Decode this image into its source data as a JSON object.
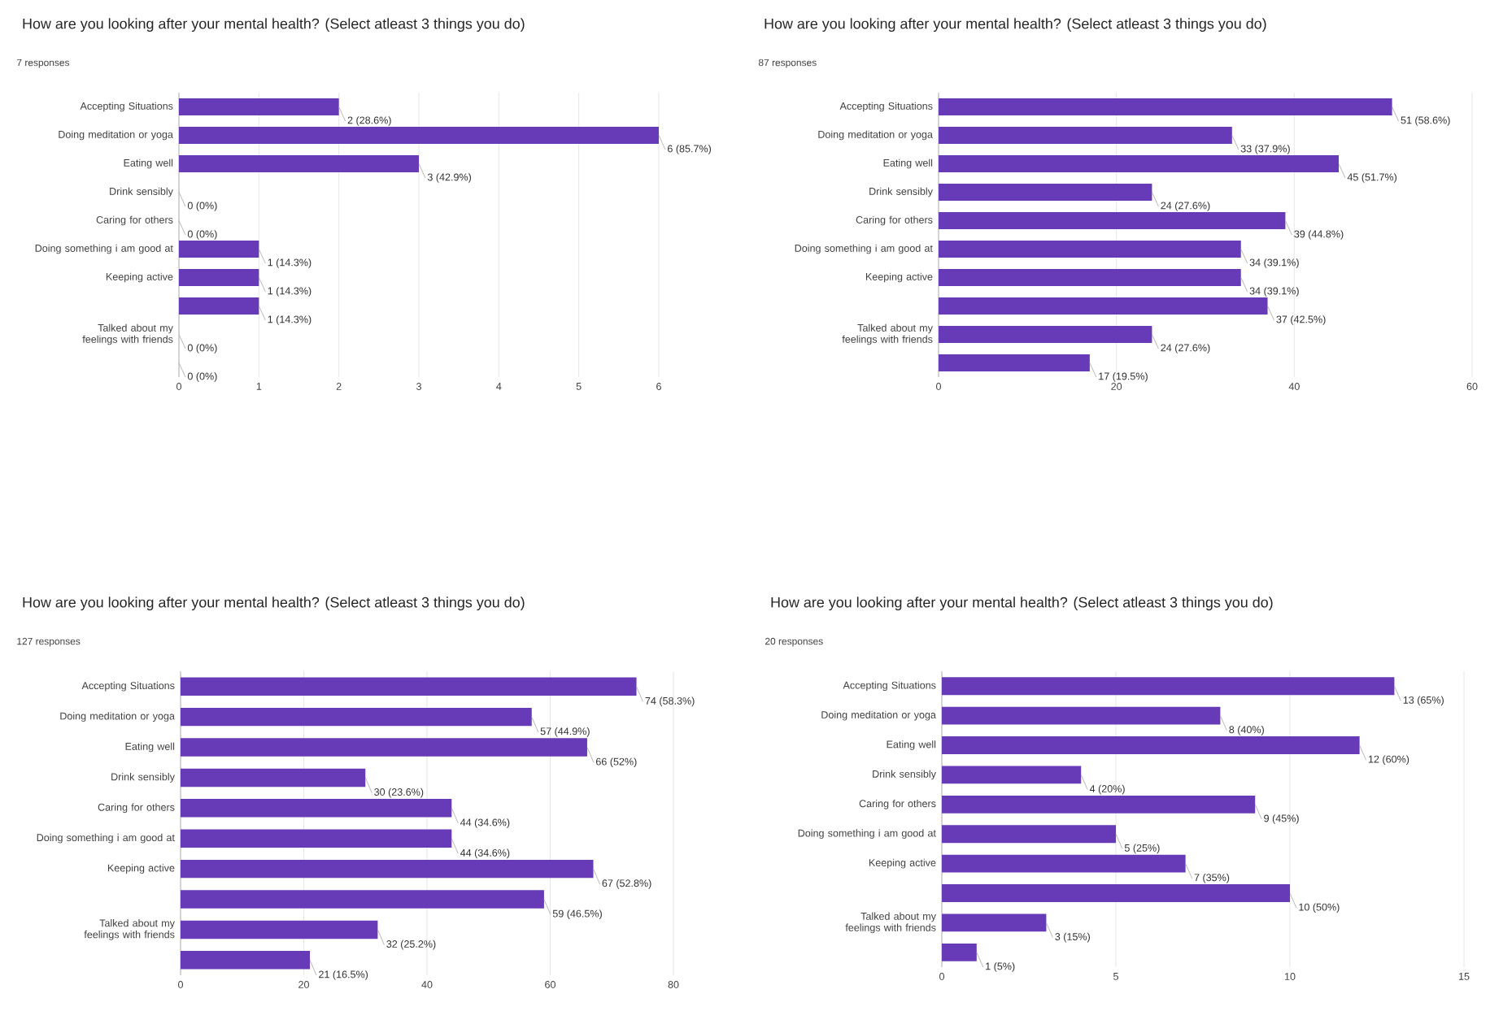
{
  "chart_data": [
    {
      "type": "bar",
      "orientation": "horizontal",
      "title": "How are you looking after your mental health? (Select atleast 3 things you do)",
      "subtitle": "7 responses",
      "categories": [
        "Accepting Situations",
        "Doing meditation or yoga",
        "Eating well",
        "Drink sensibly",
        "Caring for others",
        "Doing something i am good at",
        "Keeping active",
        null,
        "Talked about my feelings with friends",
        null
      ],
      "values": [
        2,
        6,
        3,
        0,
        0,
        1,
        1,
        1,
        0,
        0
      ],
      "value_labels": [
        "2 (28.6%)",
        "6 (85.7%)",
        "3 (42.9%)",
        "0 (0%)",
        "0 (0%)",
        "1 (14.3%)",
        "1 (14.3%)",
        "1 (14.3%)",
        "0 (0%)",
        "0 (0%)"
      ],
      "color": "#673ab7",
      "xlim": [
        0,
        6
      ],
      "xticks": [
        0,
        1,
        2,
        3,
        4,
        5,
        6
      ],
      "grid": "x"
    },
    {
      "type": "bar",
      "orientation": "horizontal",
      "title": "How are you looking after your mental health? (Select atleast 3 things you do)",
      "subtitle": "87 responses",
      "categories": [
        "Accepting Situations",
        "Doing meditation or yoga",
        "Eating well",
        "Drink sensibly",
        "Caring for others",
        "Doing something i am good at",
        "Keeping active",
        null,
        "Talked about my feelings with friends",
        null
      ],
      "values": [
        51,
        33,
        45,
        24,
        39,
        34,
        34,
        37,
        24,
        17
      ],
      "value_labels": [
        "51 (58.6%)",
        "33 (37.9%)",
        "45 (51.7%)",
        "24 (27.6%)",
        "39 (44.8%)",
        "34 (39.1%)",
        "34 (39.1%)",
        "37 (42.5%)",
        "24 (27.6%)",
        "17 (19.5%)"
      ],
      "color": "#673ab7",
      "xlim": [
        0,
        60
      ],
      "xticks": [
        0,
        20,
        40,
        60
      ],
      "grid": "x"
    },
    {
      "type": "bar",
      "orientation": "horizontal",
      "title": "How are you looking after your mental health? (Select atleast 3 things you do)",
      "subtitle": "127 responses",
      "categories": [
        "Accepting Situations",
        "Doing meditation or yoga",
        "Eating well",
        "Drink sensibly",
        "Caring for others",
        "Doing something i am good at",
        "Keeping active",
        null,
        "Talked about my feelings with friends",
        null
      ],
      "values": [
        74,
        57,
        66,
        30,
        44,
        44,
        67,
        59,
        32,
        21
      ],
      "value_labels": [
        "74 (58.3%)",
        "57 (44.9%)",
        "66 (52%)",
        "30 (23.6%)",
        "44 (34.6%)",
        "44 (34.6%)",
        "67 (52.8%)",
        "59 (46.5%)",
        "32 (25.2%)",
        "21 (16.5%)"
      ],
      "color": "#673ab7",
      "xlim": [
        0,
        80
      ],
      "xticks": [
        0,
        20,
        40,
        60,
        80
      ],
      "grid": "x"
    },
    {
      "type": "bar",
      "orientation": "horizontal",
      "title": "How are you looking after your mental health? (Select atleast 3 things you do)",
      "subtitle": "20 responses",
      "categories": [
        "Accepting Situations",
        "Doing meditation or yoga",
        "Eating well",
        "Drink sensibly",
        "Caring for others",
        "Doing something i am good at",
        "Keeping active",
        null,
        "Talked about my feelings with friends",
        null
      ],
      "values": [
        13,
        8,
        12,
        4,
        9,
        5,
        7,
        10,
        3,
        1
      ],
      "value_labels": [
        "13 (65%)",
        "8 (40%)",
        "12 (60%)",
        "4 (20%)",
        "9 (45%)",
        "5 (25%)",
        "7 (35%)",
        "10 (50%)",
        "3 (15%)",
        "1 (5%)"
      ],
      "color": "#673ab7",
      "xlim": [
        0,
        15
      ],
      "xticks": [
        0,
        5,
        10,
        15
      ],
      "grid": "x"
    }
  ]
}
